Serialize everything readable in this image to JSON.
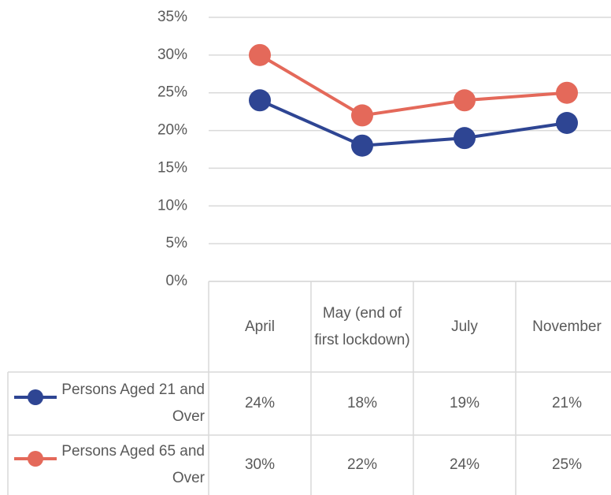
{
  "chart_data": {
    "type": "line",
    "categories": [
      "April",
      "May (end of first lockdown)",
      "July",
      "November"
    ],
    "series": [
      {
        "name": "Persons Aged 21 and Over",
        "color": "#2e4593",
        "values": [
          24,
          18,
          19,
          21
        ],
        "value_labels": [
          "24%",
          "18%",
          "19%",
          "21%"
        ]
      },
      {
        "name": "Persons Aged 65 and Over",
        "color": "#e4695a",
        "values": [
          30,
          22,
          24,
          25
        ],
        "value_labels": [
          "30%",
          "22%",
          "24%",
          "25%"
        ]
      }
    ],
    "ylim": [
      0,
      35
    ],
    "yticks": [
      {
        "value": 0,
        "label": "0%"
      },
      {
        "value": 5,
        "label": "5%"
      },
      {
        "value": 10,
        "label": "10%"
      },
      {
        "value": 15,
        "label": "15%"
      },
      {
        "value": 20,
        "label": "20%"
      },
      {
        "value": 25,
        "label": "25%"
      },
      {
        "value": 30,
        "label": "30%"
      },
      {
        "value": 35,
        "label": "35%"
      }
    ],
    "grid": true
  }
}
